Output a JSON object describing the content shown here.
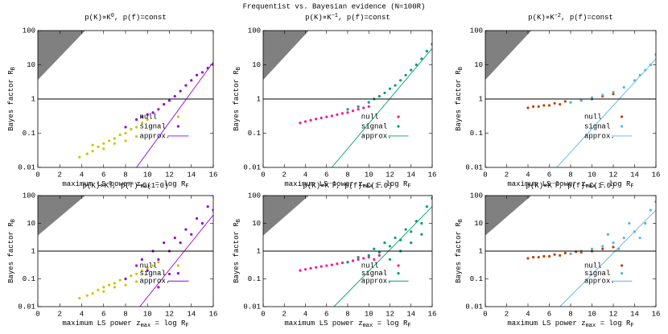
{
  "title": "Frequentist vs. Bayesian evidence (N=100R)",
  "chart_data": [
    {
      "type": "scatter",
      "title": [
        "p(K)∝K",
        "0",
        ",  p(f)=const"
      ],
      "xlabel": [
        "maximum LS power z",
        "max",
        " = log R",
        "F"
      ],
      "ylabel": [
        "Bayes factor R",
        "B"
      ],
      "xlim": [
        0,
        16
      ],
      "xticks": [
        0,
        2,
        4,
        6,
        8,
        10,
        12,
        14,
        16
      ],
      "ylim": [
        0.01,
        100
      ],
      "yticks": [
        0.01,
        0.1,
        1,
        10,
        100
      ],
      "log_y": true,
      "hline": 1,
      "series": [
        {
          "name": "null",
          "color": "#c8c800",
          "x": [
            3.8,
            4.5,
            5,
            5.5,
            6,
            6.5,
            7,
            7.5,
            8,
            8.5,
            9,
            9.5,
            10,
            5,
            6,
            7,
            8,
            9
          ],
          "y": [
            0.02,
            0.025,
            0.03,
            0.04,
            0.05,
            0.06,
            0.07,
            0.09,
            0.1,
            0.13,
            0.15,
            0.2,
            0.25,
            0.045,
            0.035,
            0.05,
            0.06,
            0.08
          ]
        },
        {
          "name": "signal",
          "color": "#9400d3",
          "x": [
            8,
            9,
            9.5,
            10,
            10.5,
            11,
            11.5,
            12,
            12.5,
            13,
            13.5,
            14,
            14.5,
            15,
            15.5,
            16
          ],
          "y": [
            0.15,
            0.25,
            0.3,
            0.35,
            0.4,
            0.5,
            0.7,
            0.9,
            1.2,
            1.7,
            2.5,
            3.5,
            5,
            6,
            8,
            10
          ]
        },
        {
          "name": "approx.",
          "color": "#9400d3",
          "style": "line",
          "x": [
            9,
            16
          ],
          "y": [
            0.01,
            12
          ]
        }
      ]
    },
    {
      "type": "scatter",
      "title": [
        "p(K)∝K",
        "−1",
        ",  p(f)=const"
      ],
      "xlabel": [
        "maximum LS power z",
        "max",
        " = log R",
        "F"
      ],
      "ylabel": [
        "Bayes factor R",
        "B"
      ],
      "xlim": [
        0,
        16
      ],
      "xticks": [
        0,
        2,
        4,
        6,
        8,
        10,
        12,
        14,
        16
      ],
      "ylim": [
        0.01,
        100
      ],
      "yticks": [
        0.01,
        0.1,
        1,
        10,
        100
      ],
      "log_y": true,
      "hline": 1,
      "series": [
        {
          "name": "null",
          "color": "#ff1493",
          "x": [
            3.5,
            4,
            4.5,
            5,
            5.5,
            6,
            6.5,
            7,
            7.5,
            8,
            8.5,
            9,
            9.5,
            10
          ],
          "y": [
            0.2,
            0.22,
            0.24,
            0.26,
            0.28,
            0.3,
            0.32,
            0.35,
            0.38,
            0.4,
            0.45,
            0.5,
            0.55,
            0.6
          ]
        },
        {
          "name": "signal",
          "color": "#009e73",
          "x": [
            8,
            9,
            10,
            10.5,
            11,
            11.5,
            12,
            12.5,
            13,
            13.5,
            14,
            14.5,
            15,
            15.5,
            16
          ],
          "y": [
            0.5,
            0.6,
            0.8,
            1,
            1.2,
            1.5,
            2,
            2.5,
            3.5,
            5,
            7,
            10,
            15,
            25,
            40
          ]
        },
        {
          "name": "approx.",
          "color": "#009e73",
          "style": "line",
          "x": [
            6.5,
            16
          ],
          "y": [
            0.01,
            30
          ]
        }
      ]
    },
    {
      "type": "scatter",
      "title": [
        "p(K)∝K",
        "−2",
        ",  p(f)=const"
      ],
      "xlabel": [
        "maximum LS power z",
        "max",
        " = log R",
        "F"
      ],
      "ylabel": [
        "Bayes factor R",
        "B"
      ],
      "xlim": [
        0,
        16
      ],
      "xticks": [
        0,
        2,
        4,
        6,
        8,
        10,
        12,
        14,
        16
      ],
      "ylim": [
        0.01,
        100
      ],
      "yticks": [
        0.01,
        0.1,
        1,
        10,
        100
      ],
      "log_y": true,
      "hline": 1,
      "series": [
        {
          "name": "null",
          "color": "#c04000",
          "x": [
            4,
            5,
            6,
            7,
            8,
            9,
            10,
            11,
            12,
            4.5,
            5.5,
            6.5,
            7.5
          ],
          "y": [
            0.55,
            0.6,
            0.65,
            0.7,
            0.8,
            0.9,
            1,
            1.2,
            1.4,
            0.6,
            0.65,
            0.75,
            0.85
          ]
        },
        {
          "name": "signal",
          "color": "#56b4e9",
          "x": [
            8,
            9,
            10,
            11,
            12,
            13,
            14,
            15,
            16,
            14.5,
            15.5
          ],
          "y": [
            0.8,
            0.9,
            1.1,
            1.3,
            1.6,
            2.2,
            3.5,
            7,
            20,
            5,
            10
          ]
        },
        {
          "name": "approx.",
          "color": "#56b4e9",
          "style": "line",
          "x": [
            6.7,
            16
          ],
          "y": [
            0.01,
            15
          ]
        }
      ]
    },
    {
      "type": "scatter",
      "title": [
        "p(K)∝K",
        "0",
        ",  p(f)~C(1.0)"
      ],
      "xlabel": [
        "maximum LS power z",
        "max",
        " = log R",
        "F"
      ],
      "ylabel": [
        "Bayes factor R",
        "B"
      ],
      "xlim": [
        0,
        16
      ],
      "xticks": [
        0,
        2,
        4,
        6,
        8,
        10,
        12,
        14,
        16
      ],
      "ylim": [
        0.01,
        100
      ],
      "yticks": [
        0.01,
        0.1,
        1,
        10,
        100
      ],
      "log_y": true,
      "hline": 1,
      "series": [
        {
          "name": "null",
          "color": "#c8c800",
          "x": [
            3.8,
            4.5,
            5,
            5.5,
            6,
            6.5,
            7,
            7.5,
            8,
            8.5,
            9,
            9.5,
            10,
            10.5,
            11,
            6,
            7,
            8,
            9
          ],
          "y": [
            0.02,
            0.025,
            0.03,
            0.04,
            0.05,
            0.06,
            0.07,
            0.09,
            0.1,
            0.13,
            0.15,
            0.2,
            0.25,
            0.3,
            0.4,
            0.035,
            0.05,
            0.06,
            0.08
          ]
        },
        {
          "name": "signal",
          "color": "#9400d3",
          "x": [
            8,
            9,
            9.5,
            10,
            10.5,
            11,
            11.5,
            12,
            12.5,
            13,
            13.5,
            14,
            14.5,
            15,
            15.5,
            16,
            11,
            12
          ],
          "y": [
            0.1,
            0.3,
            0.5,
            0.2,
            1,
            0.5,
            2,
            1,
            3,
            2,
            6,
            4,
            15,
            10,
            40,
            30,
            0.05,
            0.15
          ]
        },
        {
          "name": "approx.",
          "color": "#9400d3",
          "style": "line",
          "x": [
            9.3,
            16
          ],
          "y": [
            0.01,
            20
          ]
        }
      ]
    },
    {
      "type": "scatter",
      "title": [
        "p(K)∝K",
        "−1",
        ",  p(f)~C(1.0)"
      ],
      "xlabel": [
        "maximum LS power z",
        "max",
        " = log R",
        "F"
      ],
      "ylabel": [
        "Bayes factor R",
        "B"
      ],
      "xlim": [
        0,
        16
      ],
      "xticks": [
        0,
        2,
        4,
        6,
        8,
        10,
        12,
        14,
        16
      ],
      "ylim": [
        0.01,
        100
      ],
      "yticks": [
        0.01,
        0.1,
        1,
        10,
        100
      ],
      "log_y": true,
      "hline": 1,
      "series": [
        {
          "name": "null",
          "color": "#ff1493",
          "x": [
            3.5,
            4,
            4.5,
            5,
            5.5,
            6,
            6.5,
            7,
            7.5,
            8,
            8.5,
            9,
            9.5,
            10,
            10.5,
            11
          ],
          "y": [
            0.2,
            0.22,
            0.24,
            0.26,
            0.28,
            0.3,
            0.32,
            0.35,
            0.38,
            0.4,
            0.45,
            0.5,
            0.55,
            0.6,
            0.5,
            0.7
          ]
        },
        {
          "name": "signal",
          "color": "#009e73",
          "x": [
            8,
            9,
            10,
            10.5,
            11,
            11.5,
            12,
            12.5,
            13,
            13.5,
            14,
            14.5,
            15,
            15.5,
            16,
            12,
            13,
            14,
            15
          ],
          "y": [
            0.4,
            0.6,
            0.7,
            1.2,
            0.9,
            2,
            1.5,
            3,
            2.5,
            6,
            5,
            12,
            10,
            40,
            80,
            0.5,
            1,
            2,
            4
          ]
        },
        {
          "name": "approx.",
          "color": "#009e73",
          "style": "line",
          "x": [
            6.7,
            16
          ],
          "y": [
            0.01,
            40
          ]
        }
      ]
    },
    {
      "type": "scatter",
      "title": [
        "p(K)∝K",
        "−2",
        ",  p(f)~C(1.0)"
      ],
      "xlabel": [
        "maximum LS power z",
        "max",
        " = log R",
        "F"
      ],
      "ylabel": [
        "Bayes factor R",
        "B"
      ],
      "xlim": [
        0,
        16
      ],
      "xticks": [
        0,
        2,
        4,
        6,
        8,
        10,
        12,
        14,
        16
      ],
      "ylim": [
        0.01,
        100
      ],
      "yticks": [
        0.01,
        0.1,
        1,
        10,
        100
      ],
      "log_y": true,
      "hline": 1,
      "series": [
        {
          "name": "null",
          "color": "#c04000",
          "x": [
            4,
            5,
            6,
            7,
            8,
            9,
            10,
            11,
            12,
            4.5,
            5.5,
            6.5,
            7.5,
            8.5
          ],
          "y": [
            0.55,
            0.6,
            0.65,
            0.7,
            0.8,
            0.9,
            1,
            1.2,
            1.4,
            0.6,
            0.65,
            0.75,
            0.85,
            0.95
          ]
        },
        {
          "name": "signal",
          "color": "#56b4e9",
          "x": [
            8,
            9,
            10,
            11,
            12,
            13,
            14,
            15,
            16,
            12.5,
            13.5,
            14.5,
            15.5,
            11.5
          ],
          "y": [
            0.8,
            1,
            1.2,
            1.5,
            2,
            3,
            5,
            10,
            60,
            1.2,
            10,
            3,
            30,
            4
          ]
        },
        {
          "name": "approx.",
          "color": "#56b4e9",
          "style": "line",
          "x": [
            7,
            16
          ],
          "y": [
            0.01,
            30
          ]
        }
      ]
    }
  ]
}
